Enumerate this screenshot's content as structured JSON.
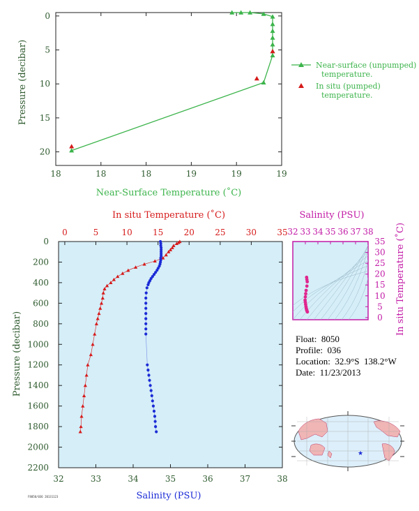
{
  "colors": {
    "green": "#3cb44b",
    "red": "#d61a1a",
    "blue": "#1b2bd6",
    "magenta": "#c21aa6",
    "axis_text": "#2e5a2e",
    "panel_fill": "#d5eef8"
  },
  "info": {
    "float": "Float:  8050",
    "profile": "Profile:  036",
    "location": "Location:  32.9°S  138.2°W",
    "date": "Date:  11/23/2013"
  },
  "footer_tag": "F8050/036 20131123",
  "chart_data": [
    {
      "type": "line",
      "panel": "near-surface",
      "xlabel": "Near-Surface Temperature (˚C)",
      "ylabel": "Pressure (decibar)",
      "x_tick_labels": [
        "18",
        "18",
        "18",
        "19",
        "19",
        "19"
      ],
      "x_ticks": [
        18.0,
        18.2,
        18.4,
        18.6,
        18.8,
        19.0
      ],
      "y_ticks": [
        0,
        5,
        10,
        15,
        20
      ],
      "xlim": [
        18.0,
        19.0
      ],
      "ylim": [
        22,
        -0.5
      ],
      "legend_position": "right",
      "series": [
        {
          "name": "Near-surface (unpumped) temperature.",
          "marker": "triangle",
          "line": true,
          "x": [
            18.78,
            18.82,
            18.86,
            18.92,
            18.96,
            18.96,
            18.96,
            18.96,
            18.96,
            18.96,
            18.96,
            18.92,
            18.07
          ],
          "y": [
            -0.5,
            -0.5,
            -0.5,
            -0.3,
            0.1,
            1.2,
            2.2,
            3.2,
            4.2,
            5.2,
            5.8,
            9.8,
            19.8
          ]
        },
        {
          "name": "In situ (pumped) temperature.",
          "marker": "triangle",
          "line": false,
          "x": [
            18.07,
            18.89,
            18.96
          ],
          "y": [
            19.2,
            9.2,
            5.2
          ]
        }
      ]
    },
    {
      "type": "line",
      "panel": "profile",
      "top_xlabel": "In situ Temperature (˚C)",
      "bottom_xlabel": "Salinity (PSU)",
      "ylabel": "Pressure (decibar)",
      "temp_ticks": [
        0,
        5,
        10,
        15,
        20,
        25,
        30,
        35
      ],
      "sal_ticks": [
        32,
        33,
        34,
        35,
        36,
        37,
        38
      ],
      "y_ticks": [
        0,
        200,
        400,
        600,
        800,
        1000,
        1200,
        1400,
        1600,
        1800,
        2000,
        2200
      ],
      "temp_lim": [
        -1,
        35
      ],
      "sal_lim": [
        32,
        38
      ],
      "ylim": [
        2200,
        0
      ],
      "series": [
        {
          "name": "temperature",
          "marker": "triangle",
          "pressure": [
            0,
            10,
            20,
            40,
            60,
            80,
            100,
            130,
            160,
            190,
            220,
            250,
            280,
            310,
            340,
            370,
            400,
            430,
            460,
            500,
            550,
            600,
            650,
            700,
            750,
            800,
            900,
            1000,
            1100,
            1200,
            1300,
            1400,
            1500,
            1600,
            1700,
            1800,
            1850
          ],
          "values": [
            18.5,
            18.3,
            18.0,
            17.5,
            17.3,
            17.0,
            16.7,
            16.3,
            15.8,
            14.5,
            12.8,
            11.4,
            10.2,
            9.3,
            8.5,
            7.9,
            7.4,
            6.8,
            6.4,
            6.2,
            6.1,
            5.9,
            5.7,
            5.5,
            5.3,
            5.1,
            4.8,
            4.5,
            4.2,
            3.7,
            3.5,
            3.3,
            3.1,
            2.9,
            2.7,
            2.6,
            2.5
          ]
        },
        {
          "name": "salinity",
          "marker": "circle",
          "pressure": [
            0,
            20,
            40,
            60,
            80,
            100,
            120,
            140,
            160,
            180,
            200,
            220,
            240,
            260,
            280,
            300,
            320,
            340,
            360,
            380,
            400,
            420,
            450,
            500,
            550,
            600,
            650,
            700,
            750,
            800,
            850,
            900,
            1200,
            1250,
            1300,
            1350,
            1400,
            1450,
            1500,
            1550,
            1600,
            1650,
            1700,
            1750,
            1800,
            1850
          ],
          "values": [
            34.73,
            34.74,
            34.74,
            34.75,
            34.75,
            34.75,
            34.75,
            34.75,
            34.74,
            34.74,
            34.73,
            34.72,
            34.7,
            34.67,
            34.64,
            34.6,
            34.56,
            34.52,
            34.48,
            34.45,
            34.42,
            34.4,
            34.37,
            34.35,
            34.34,
            34.34,
            34.34,
            34.34,
            34.34,
            34.34,
            34.34,
            34.34,
            34.38,
            34.4,
            34.42,
            34.44,
            34.46,
            34.48,
            34.5,
            34.52,
            34.54,
            34.56,
            34.58,
            34.59,
            34.6,
            34.62
          ]
        }
      ]
    },
    {
      "type": "scatter",
      "panel": "ts-diagram",
      "top_xlabel": "Salinity (PSU)",
      "ylabel": "In situ Temperature (˚C)",
      "x_ticks": [
        32,
        33,
        34,
        35,
        36,
        37,
        38
      ],
      "y_ticks": [
        0,
        5,
        10,
        15,
        20,
        25,
        30,
        35
      ],
      "xlim": [
        32,
        38
      ],
      "ylim": [
        -1,
        35
      ],
      "series": [
        {
          "name": "T-S",
          "salinity": [
            33.1,
            33.12,
            33.15,
            33.12,
            33.06,
            33.03,
            33.0,
            32.98,
            33.0,
            33.02,
            33.05,
            33.07,
            33.1,
            33.12,
            33.16
          ],
          "temperature": [
            18.5,
            17.5,
            16.5,
            14.5,
            12.5,
            11.0,
            9.5,
            8.0,
            7.0,
            6.0,
            5.0,
            4.2,
            3.6,
            3.1,
            2.6
          ]
        }
      ]
    },
    {
      "type": "scatter",
      "panel": "location-map",
      "series": [
        {
          "name": "float-position",
          "lat": [
            -32.9
          ],
          "lon": [
            -138.2
          ]
        }
      ]
    }
  ]
}
